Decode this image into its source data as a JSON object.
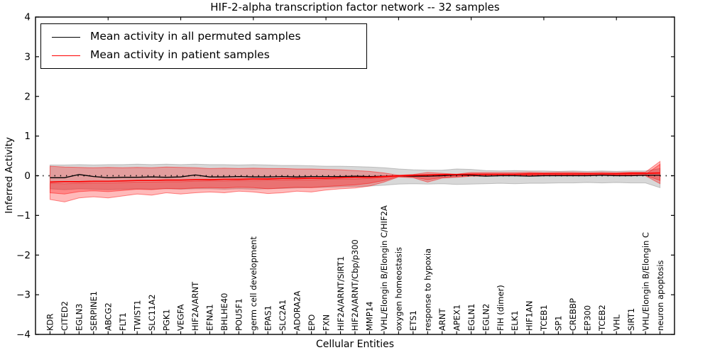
{
  "title": "HIF-2-alpha transcription factor network -- 32 samples",
  "legend": {
    "entries": [
      {
        "label": "Mean activity in all permuted samples",
        "color": "#000000"
      },
      {
        "label": "Mean activity in patient samples",
        "color": "#ff0000"
      }
    ]
  },
  "chart_data": {
    "type": "line",
    "title": "HIF-2-alpha transcription factor network -- 32 samples",
    "xlabel": "Cellular Entities",
    "ylabel": "Inferred Activity",
    "ylim": [
      -4,
      4
    ],
    "grid": false,
    "legend_position": "upper left",
    "ytick_labels": [
      "4",
      "3",
      "2",
      "1",
      "0",
      "−1",
      "−2",
      "−3",
      "−4"
    ],
    "categories": [
      "KDR",
      "CITED2",
      "EGLN3",
      "SERPINE1",
      "ABCG2",
      "FLT1",
      "TWIST1",
      "SLC11A2",
      "PGK1",
      "VEGFA",
      "HIF2A/ARNT",
      "EFNA1",
      "BHLHE40",
      "POU5F1",
      "germ cell development",
      "EPAS1",
      "SLC2A1",
      "ADORA2A",
      "EPO",
      "FXN",
      "HIF2A/ARNT/SIRT1",
      "HIF2A/ARNT/Cbp/p300",
      "MMP14",
      "VHL/Elongin B/Elongin C/HIF2A",
      "oxygen homeostasis",
      "ETS1",
      "response to hypoxia",
      "ARNT",
      "APEX1",
      "EGLN1",
      "EGLN2",
      "FIH (dimer)",
      "ELK1",
      "HIF1AN",
      "TCEB1",
      "SP1",
      "CREBBP",
      "EP300",
      "TCEB2",
      "VHL",
      "SIRT1",
      "VHL/Elongin B/Elongin C",
      "neuron apoptosis"
    ],
    "series": [
      {
        "name": "Mean activity in all permuted samples",
        "color": "#000000",
        "width": 1.3,
        "values": [
          -0.05,
          -0.05,
          0.03,
          -0.02,
          -0.05,
          -0.04,
          -0.04,
          -0.03,
          -0.04,
          -0.03,
          0.02,
          -0.03,
          -0.03,
          -0.02,
          -0.03,
          -0.03,
          -0.02,
          -0.03,
          -0.02,
          -0.02,
          -0.02,
          -0.01,
          -0.02,
          -0.01,
          0.0,
          -0.01,
          -0.01,
          0.0,
          0.02,
          0.01,
          -0.01,
          0.0,
          0.0,
          -0.01,
          0.0,
          0.0,
          0.0,
          0.0,
          0.01,
          0.0,
          0.0,
          0.01,
          0.01
        ]
      },
      {
        "name": "Mean activity in patient samples",
        "color": "#ff0000",
        "width": 1.7,
        "values": [
          -0.16,
          -0.15,
          -0.15,
          -0.14,
          -0.14,
          -0.13,
          -0.12,
          -0.12,
          -0.11,
          -0.11,
          -0.1,
          -0.1,
          -0.09,
          -0.09,
          -0.08,
          -0.08,
          -0.07,
          -0.07,
          -0.06,
          -0.06,
          -0.05,
          -0.04,
          -0.04,
          -0.02,
          0.0,
          0.01,
          0.02,
          0.03,
          0.03,
          0.04,
          0.04,
          0.04,
          0.04,
          0.05,
          0.05,
          0.05,
          0.05,
          0.05,
          0.05,
          0.05,
          0.06,
          0.06,
          0.07
        ]
      }
    ],
    "bands": [
      {
        "name": "permuted-samples-band",
        "color": "#999999",
        "opacity": 0.38,
        "upper": [
          0.27,
          0.27,
          0.28,
          0.27,
          0.28,
          0.28,
          0.29,
          0.28,
          0.29,
          0.28,
          0.29,
          0.28,
          0.28,
          0.27,
          0.28,
          0.27,
          0.26,
          0.26,
          0.25,
          0.24,
          0.24,
          0.23,
          0.22,
          0.2,
          0.17,
          0.15,
          0.14,
          0.14,
          0.17,
          0.16,
          0.13,
          0.12,
          0.13,
          0.12,
          0.12,
          0.11,
          0.12,
          0.11,
          0.12,
          0.11,
          0.12,
          0.12,
          0.18
        ],
        "lower": [
          -0.33,
          -0.35,
          -0.33,
          -0.34,
          -0.35,
          -0.34,
          -0.33,
          -0.34,
          -0.33,
          -0.34,
          -0.33,
          -0.33,
          -0.34,
          -0.33,
          -0.34,
          -0.33,
          -0.32,
          -0.31,
          -0.3,
          -0.29,
          -0.28,
          -0.27,
          -0.26,
          -0.24,
          -0.21,
          -0.2,
          -0.21,
          -0.2,
          -0.22,
          -0.21,
          -0.2,
          -0.19,
          -0.2,
          -0.19,
          -0.19,
          -0.18,
          -0.18,
          -0.17,
          -0.18,
          -0.17,
          -0.18,
          -0.18,
          -0.3
        ]
      },
      {
        "name": "patient-samples-band-outer",
        "color": "#ff0000",
        "opacity": 0.27,
        "upper": [
          0.24,
          0.22,
          0.21,
          0.2,
          0.21,
          0.2,
          0.21,
          0.2,
          0.22,
          0.21,
          0.2,
          0.18,
          0.19,
          0.18,
          0.19,
          0.18,
          0.18,
          0.17,
          0.17,
          0.16,
          0.15,
          0.13,
          0.11,
          0.07,
          0.01,
          0.03,
          0.08,
          0.06,
          0.04,
          0.08,
          0.08,
          0.08,
          0.08,
          0.09,
          0.08,
          0.09,
          0.09,
          0.08,
          0.09,
          0.08,
          0.09,
          0.09,
          0.36
        ],
        "lower": [
          -0.6,
          -0.66,
          -0.56,
          -0.53,
          -0.56,
          -0.51,
          -0.46,
          -0.49,
          -0.43,
          -0.46,
          -0.43,
          -0.41,
          -0.43,
          -0.39,
          -0.41,
          -0.45,
          -0.43,
          -0.39,
          -0.41,
          -0.36,
          -0.33,
          -0.31,
          -0.26,
          -0.16,
          -0.03,
          -0.05,
          -0.16,
          -0.06,
          -0.04,
          -0.01,
          -0.01,
          0.0,
          0.0,
          0.01,
          0.0,
          0.01,
          0.01,
          0.0,
          0.01,
          0.01,
          0.02,
          0.0,
          -0.2
        ]
      },
      {
        "name": "patient-samples-band-inner",
        "color": "#ff0000",
        "opacity": 0.27,
        "upper": [
          -0.19,
          -0.2,
          -0.19,
          -0.18,
          -0.18,
          -0.17,
          -0.16,
          -0.16,
          -0.15,
          -0.15,
          -0.14,
          -0.13,
          -0.13,
          -0.12,
          -0.12,
          -0.11,
          -0.11,
          -0.1,
          -0.1,
          -0.09,
          -0.08,
          -0.08,
          -0.07,
          -0.04,
          -0.01,
          0.0,
          0.02,
          0.01,
          0.01,
          0.02,
          0.02,
          0.02,
          0.02,
          0.03,
          0.03,
          0.03,
          0.03,
          0.03,
          0.03,
          0.03,
          0.04,
          0.03,
          0.29
        ],
        "lower": [
          -0.43,
          -0.46,
          -0.4,
          -0.38,
          -0.4,
          -0.37,
          -0.34,
          -0.35,
          -0.32,
          -0.33,
          -0.31,
          -0.3,
          -0.31,
          -0.29,
          -0.3,
          -0.33,
          -0.31,
          -0.29,
          -0.3,
          -0.27,
          -0.25,
          -0.23,
          -0.19,
          -0.12,
          -0.02,
          -0.03,
          -0.1,
          -0.04,
          -0.02,
          0.0,
          0.0,
          0.0,
          0.0,
          0.01,
          0.01,
          0.01,
          0.01,
          0.01,
          0.01,
          0.01,
          0.02,
          0.01,
          -0.12
        ]
      }
    ],
    "zero_line": {
      "y": 0,
      "style": "dotted",
      "color": "#000000"
    }
  }
}
